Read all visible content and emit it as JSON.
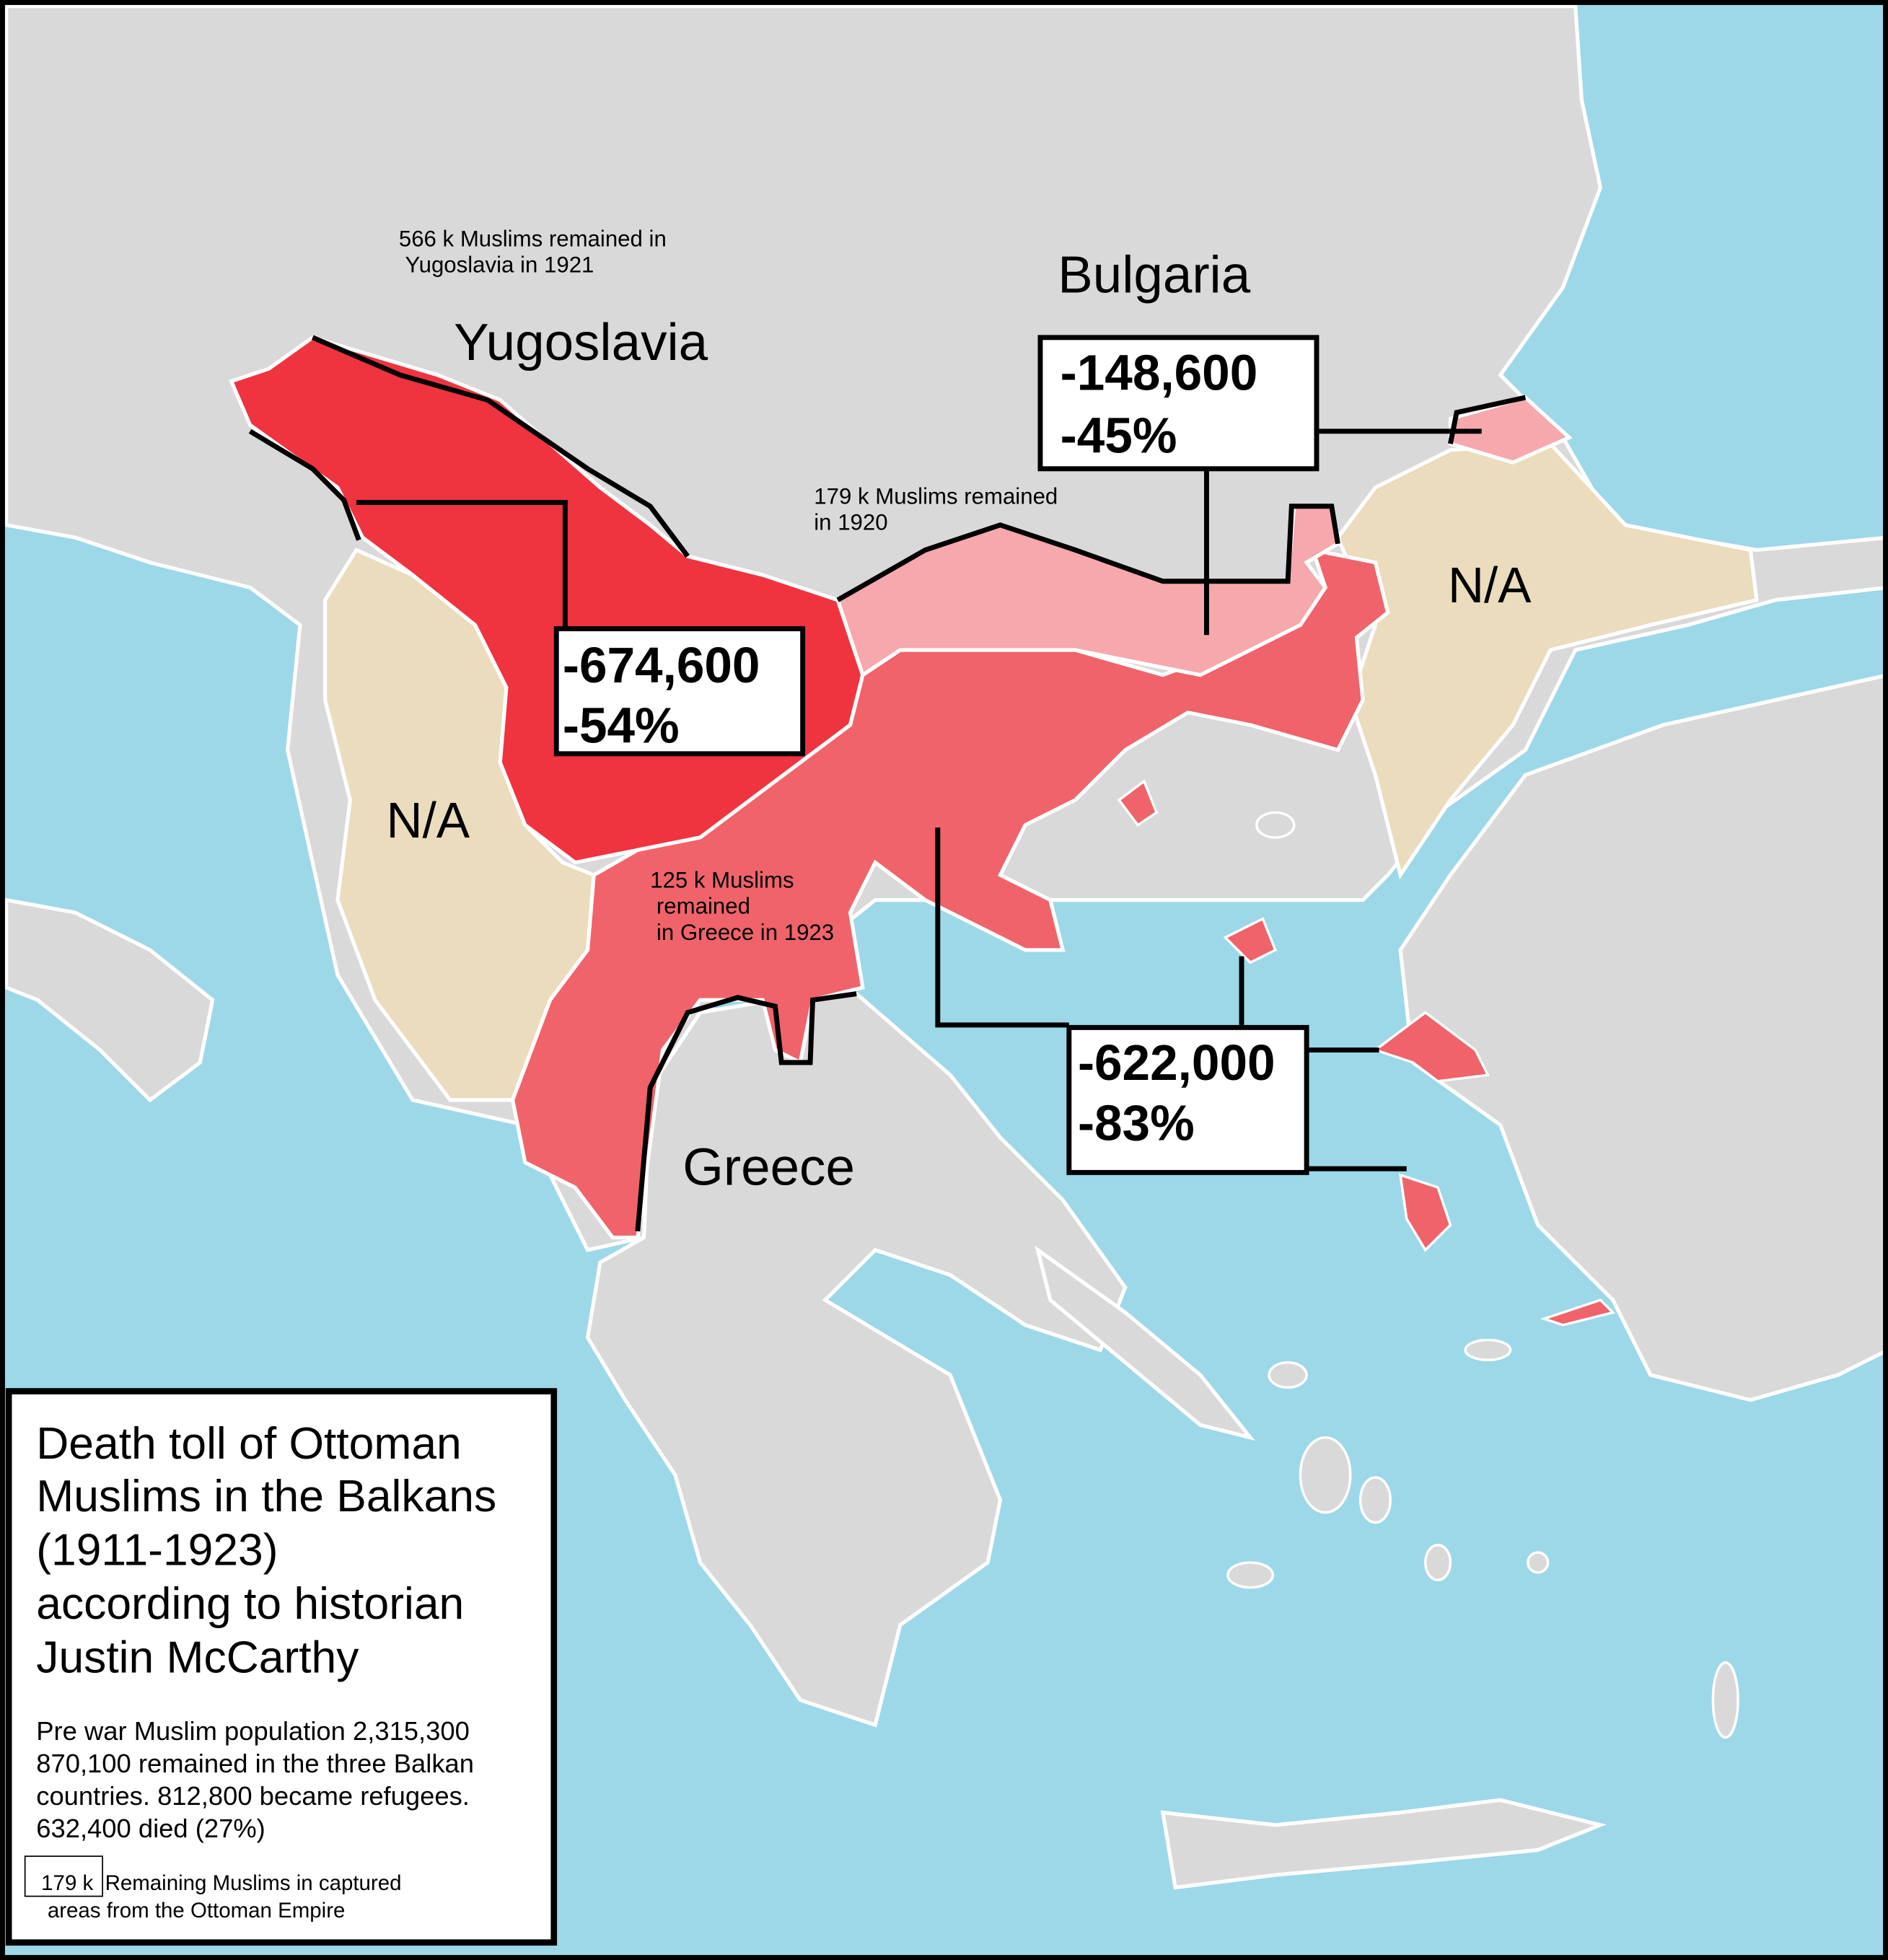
{
  "colors": {
    "sea": "#9dd8e8",
    "land": "#d9d9d9",
    "yugoslavia_loss": "#ef3440",
    "greece_loss": "#f0636a",
    "bulgaria_loss": "#f7a8ad",
    "not_available": "#eadcbd",
    "border": "#ffffff",
    "frame": "#000000"
  },
  "countries": {
    "yugoslavia": "Yugoslavia",
    "bulgaria": "Bulgaria",
    "greece": "Greece",
    "na_albania": "N/A",
    "na_thrace": "N/A"
  },
  "annotations": {
    "yugoslavia_remaining_line1": "566 k Muslims remained in",
    "yugoslavia_remaining_line2": "Yugoslavia in 1921",
    "bulgaria_remaining_line1": "179 k Muslims remained",
    "bulgaria_remaining_line2": "in 1920",
    "greece_remaining_line1": "125 k Muslims",
    "greece_remaining_line2": "remained",
    "greece_remaining_line3": "in Greece in 1923"
  },
  "callouts": {
    "yugoslavia": {
      "count": "-674,600",
      "percent": "-54%"
    },
    "bulgaria": {
      "count": "-148,600",
      "percent": "-45%"
    },
    "greece": {
      "count": "-622,000",
      "percent": "-83%"
    }
  },
  "legend": {
    "title_lines": [
      "Death toll of Ottoman",
      "Muslims in the Balkans",
      "(1911-1923)",
      "according to historian",
      "Justin McCarthy"
    ],
    "body_lines": [
      "Pre war Muslim population 2,315,300",
      "870,100 remained in the three Balkan",
      "countries. 812,800 became refugees.",
      "632,400 died (27%)"
    ],
    "key_sample": "179 k",
    "key_line1": "Remaining Muslims in captured",
    "key_line2": "areas from the Ottoman Empire"
  }
}
